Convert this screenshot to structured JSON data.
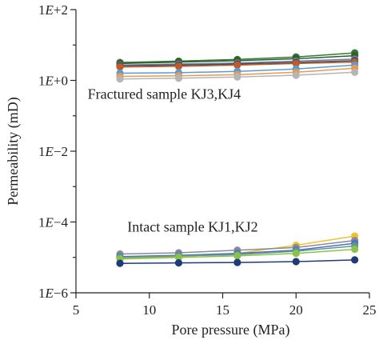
{
  "chart_data": {
    "type": "line",
    "title": "",
    "xlabel": "Pore pressure (MPa)",
    "ylabel": "Permeability (mD)",
    "xlim": [
      5,
      25
    ],
    "ylim_log10": [
      -6,
      2
    ],
    "y_scale": "log",
    "grid": false,
    "x_ticks": [
      {
        "value": 5,
        "label": "5"
      },
      {
        "value": 10,
        "label": "10"
      },
      {
        "value": 15,
        "label": "15"
      },
      {
        "value": 20,
        "label": "20"
      },
      {
        "value": 25,
        "label": "25"
      }
    ],
    "y_ticks": [
      {
        "value": 100,
        "label": "1E+2"
      },
      {
        "value": 1,
        "label": "1E+0"
      },
      {
        "value": 0.01,
        "label": "1E−2"
      },
      {
        "value": 0.0001,
        "label": "1E−4"
      },
      {
        "value": 1e-06,
        "label": "1E−6"
      }
    ],
    "x": [
      8,
      12,
      16,
      20,
      24
    ],
    "annotations": [
      {
        "text": "Fractured sample KJ3,KJ4",
        "x": 5.8,
        "y": 0.3
      },
      {
        "text": "Intact sample KJ1,KJ2",
        "x": 8.5,
        "y": 5.3e-05
      }
    ],
    "series": [
      {
        "color": "#2e7d32",
        "values": [
          3.2,
          3.5,
          3.9,
          4.6,
          6.0
        ]
      },
      {
        "color": "#375a2a",
        "values": [
          3.0,
          3.3,
          3.6,
          4.1,
          5.0
        ]
      },
      {
        "color": "#6a7fb0",
        "values": [
          2.7,
          2.9,
          3.1,
          3.5,
          4.0
        ]
      },
      {
        "color": "#4a4a4a",
        "values": [
          2.6,
          2.7,
          2.9,
          3.2,
          3.6
        ]
      },
      {
        "color": "#c15a2b",
        "values": [
          2.4,
          2.5,
          2.7,
          3.0,
          3.3
        ]
      },
      {
        "color": "#5b9bd5",
        "values": [
          1.6,
          1.65,
          1.8,
          2.1,
          2.7
        ]
      },
      {
        "color": "#e89a4f",
        "values": [
          1.3,
          1.35,
          1.45,
          1.7,
          2.2
        ]
      },
      {
        "color": "#b5b5b5",
        "values": [
          1.1,
          1.15,
          1.25,
          1.4,
          1.7
        ]
      },
      {
        "color": "#f2c12e",
        "values": [
          9.5e-06,
          1.05e-05,
          1.3e-05,
          2.2e-05,
          4e-05
        ]
      },
      {
        "color": "#8a8a9a",
        "values": [
          1.25e-05,
          1.35e-05,
          1.6e-05,
          1.9e-05,
          3e-05
        ]
      },
      {
        "color": "#4f6fc4",
        "values": [
          1.05e-05,
          1.15e-05,
          1.3e-05,
          1.6e-05,
          2.5e-05
        ]
      },
      {
        "color": "#5c9a8a",
        "values": [
          1e-05,
          1.1e-05,
          1.2e-05,
          1.5e-05,
          2.1e-05
        ]
      },
      {
        "color": "#8bc34a",
        "values": [
          9e-06,
          1e-05,
          1.1e-05,
          1.3e-05,
          1.7e-05
        ]
      },
      {
        "color": "#1f3a7a",
        "values": [
          6.8e-06,
          7e-06,
          7.2e-06,
          7.6e-06,
          8.5e-06
        ]
      }
    ]
  }
}
